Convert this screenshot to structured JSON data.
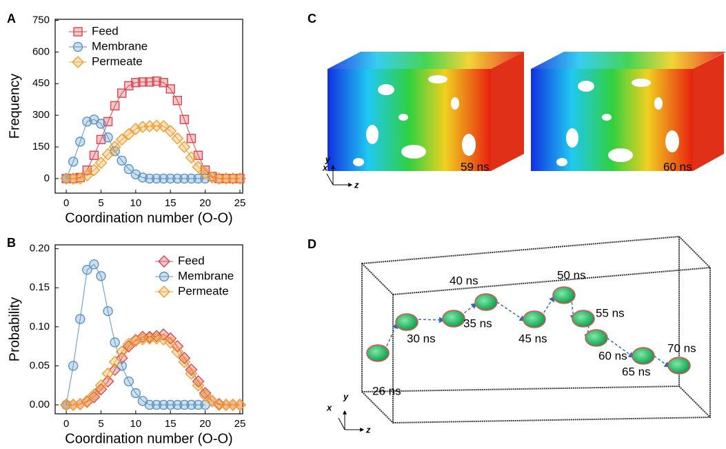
{
  "chart_data": [
    {
      "type": "line",
      "panel": "A",
      "xlabel": "Coordination number (O-O)",
      "ylabel": "Frequency",
      "x": [
        0,
        1,
        2,
        3,
        4,
        5,
        6,
        7,
        8,
        9,
        10,
        11,
        12,
        13,
        14,
        15,
        16,
        17,
        18,
        19,
        20,
        21,
        22,
        23,
        24,
        25
      ],
      "series": [
        {
          "name": "Feed",
          "color": "#d9464f",
          "marker": "square",
          "values": [
            0,
            0,
            5,
            40,
            110,
            185,
            270,
            345,
            405,
            440,
            455,
            458,
            458,
            462,
            455,
            425,
            370,
            280,
            190,
            110,
            40,
            10,
            0,
            0,
            0,
            0
          ]
        },
        {
          "name": "Membrane",
          "color": "#5b93c4",
          "marker": "circle",
          "values": [
            0,
            80,
            175,
            270,
            280,
            260,
            195,
            130,
            85,
            45,
            20,
            5,
            0,
            0,
            0,
            0,
            0,
            0,
            0,
            0,
            0,
            null,
            null,
            null,
            null,
            null
          ]
        },
        {
          "name": "Permeate",
          "color": "#f0a030",
          "marker": "diamond",
          "values": [
            0,
            0,
            0,
            15,
            40,
            75,
            115,
            150,
            185,
            210,
            235,
            245,
            248,
            250,
            248,
            225,
            190,
            150,
            100,
            55,
            25,
            5,
            0,
            0,
            0,
            0
          ]
        }
      ],
      "xlim": [
        -1.6,
        25.4
      ],
      "ylim": [
        -69,
        755
      ],
      "xticks": [
        0,
        5,
        10,
        15,
        20,
        25
      ],
      "yticks": [
        0,
        150,
        300,
        450,
        600,
        750
      ],
      "legend": "upper left"
    },
    {
      "type": "line",
      "panel": "B",
      "xlabel": "Coordination number (O-O)",
      "ylabel": "Probability",
      "x": [
        0,
        1,
        2,
        3,
        4,
        5,
        6,
        7,
        8,
        9,
        10,
        11,
        12,
        13,
        14,
        15,
        16,
        17,
        18,
        19,
        20,
        21,
        22,
        23,
        24,
        25
      ],
      "series": [
        {
          "name": "Feed",
          "color": "#d9464f",
          "marker": "diamond",
          "values": [
            0,
            0,
            0.001,
            0.004,
            0.01,
            0.02,
            0.03,
            0.045,
            0.06,
            0.075,
            0.083,
            0.087,
            0.087,
            0.088,
            0.09,
            0.085,
            0.075,
            0.06,
            0.045,
            0.03,
            0.015,
            0.005,
            0.001,
            0,
            0,
            0
          ]
        },
        {
          "name": "Membrane",
          "color": "#5b93c4",
          "marker": "circle",
          "values": [
            0,
            0.05,
            0.11,
            0.173,
            0.18,
            0.165,
            0.12,
            0.08,
            0.05,
            0.03,
            0.015,
            0.005,
            0,
            0,
            0,
            0,
            0,
            0,
            0,
            0,
            0,
            null,
            null,
            null,
            null,
            null
          ]
        },
        {
          "name": "Permeate",
          "color": "#f0a030",
          "marker": "diamond",
          "values": [
            0,
            0,
            0.001,
            0.005,
            0.013,
            0.025,
            0.04,
            0.055,
            0.068,
            0.078,
            0.082,
            0.084,
            0.085,
            0.085,
            0.084,
            0.08,
            0.068,
            0.055,
            0.04,
            0.025,
            0.012,
            0.005,
            0,
            0,
            0,
            0
          ]
        }
      ],
      "xlim": [
        -1.6,
        25.4
      ],
      "ylim": [
        -0.0115,
        0.205
      ],
      "xticks": [
        0,
        5,
        10,
        15,
        20,
        25
      ],
      "yticks": [
        {
          "value": 0,
          "label": "0.00"
        },
        {
          "value": 0.05,
          "label": "0.05"
        },
        {
          "value": 0.1,
          "label": "0.10"
        },
        {
          "value": 0.15,
          "label": "0.15"
        },
        {
          "value": 0.2,
          "label": "0.20"
        }
      ],
      "legend": "upper right"
    }
  ],
  "panels": {
    "C": {
      "label": "C",
      "times": [
        "59 ns",
        "60 ns"
      ],
      "axes": [
        "x",
        "y",
        "z"
      ]
    },
    "D": {
      "label": "D",
      "times": [
        "26 ns",
        "30 ns",
        "35 ns",
        "40 ns",
        "45 ns",
        "50 ns",
        "55 ns",
        "60 ns",
        "65 ns",
        "70 ns"
      ],
      "axes": [
        "x",
        "y",
        "z"
      ]
    }
  }
}
